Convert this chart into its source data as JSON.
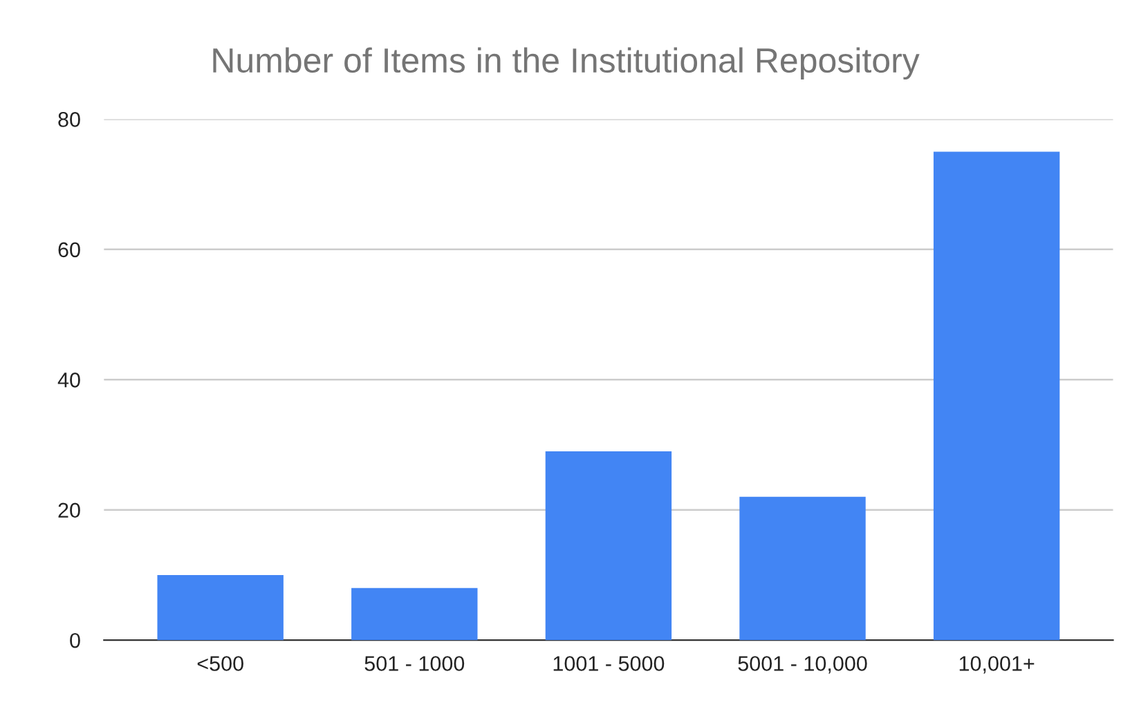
{
  "chart_data": {
    "type": "bar",
    "title": "Number of Items in the Institutional Repository",
    "categories": [
      "<500",
      "501 - 1000",
      "1001 - 5000",
      "5001 - 10,000",
      "10,001+"
    ],
    "values": [
      10,
      8,
      29,
      22,
      75
    ],
    "color": "#4285f4",
    "ylim": [
      0,
      80
    ],
    "yticks": [
      0,
      20,
      40,
      60,
      80
    ],
    "grid": "y",
    "legend": false
  }
}
